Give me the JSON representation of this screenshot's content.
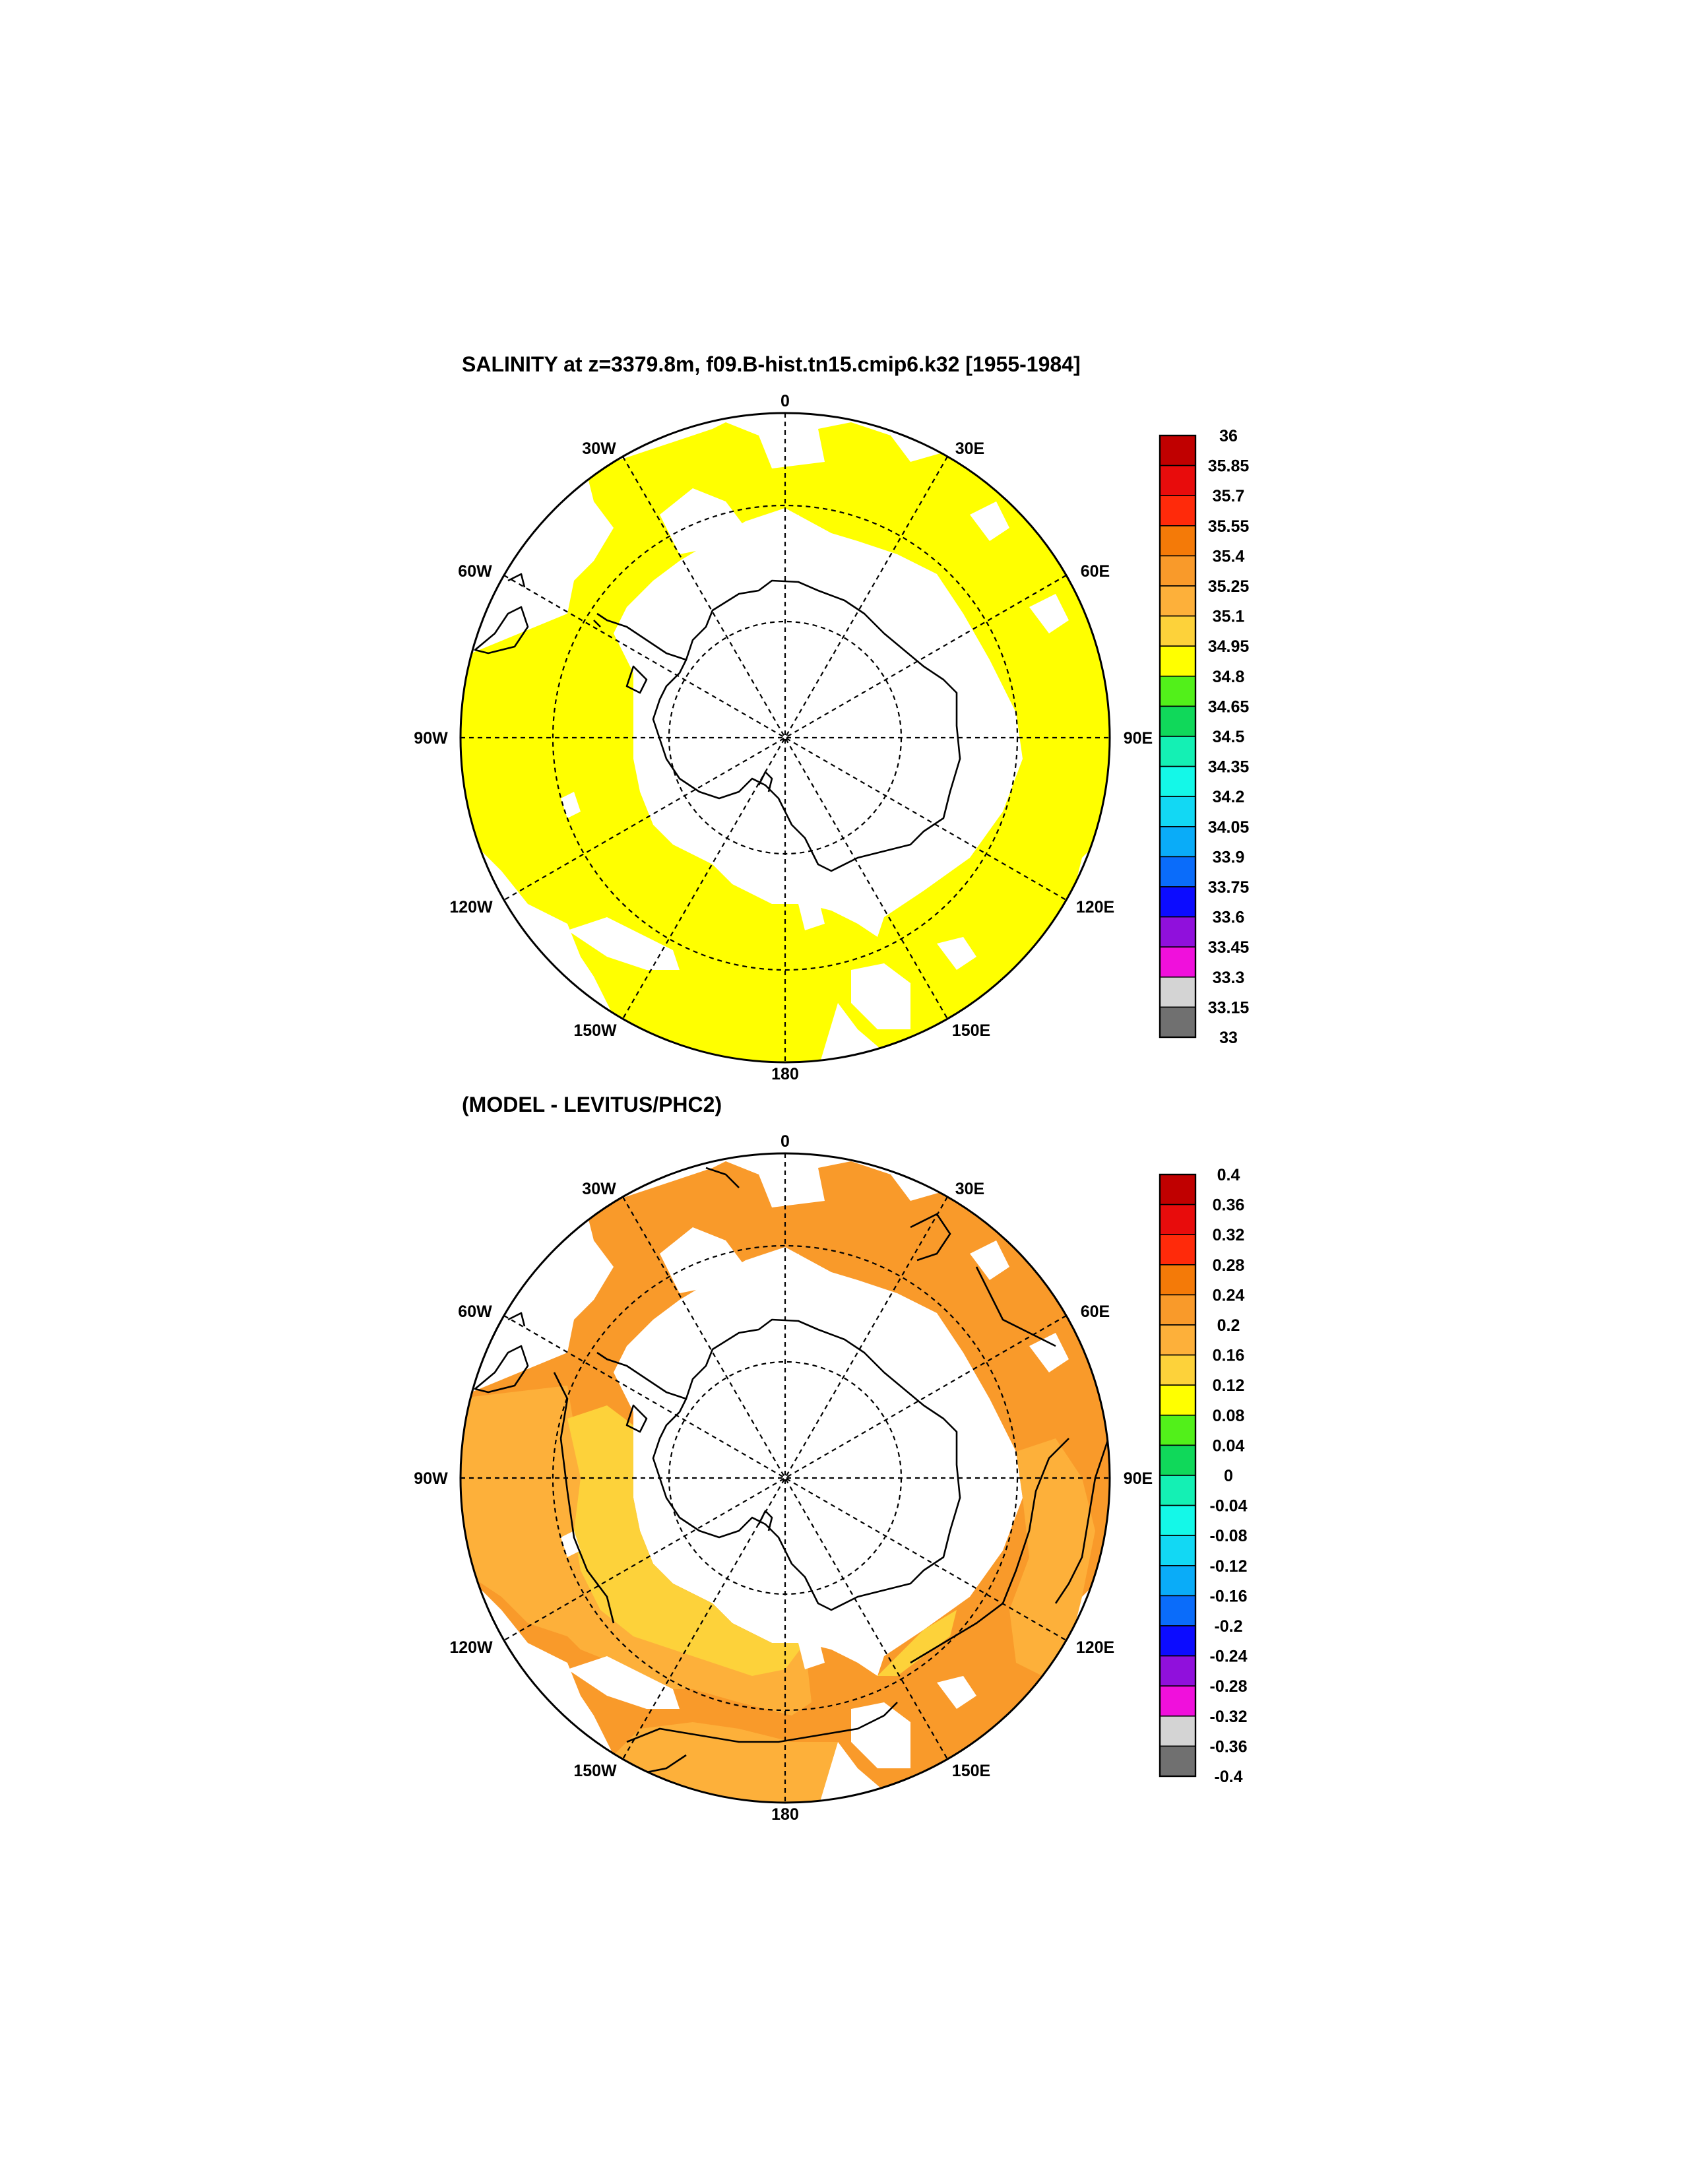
{
  "chart_data": [
    {
      "type": "map",
      "projection": "south-polar-stereographic",
      "title": "SALINITY at z=3379.8m, f09.B-hist.tn15.cmip6.k32 [1955-1984]",
      "longitude_labels": [
        "0",
        "30E",
        "60E",
        "90E",
        "120E",
        "150E",
        "180",
        "150W",
        "120W",
        "90W",
        "60W",
        "30W"
      ],
      "colorbar": {
        "levels": [
          "36",
          "35.85",
          "35.7",
          "35.55",
          "35.4",
          "35.25",
          "35.1",
          "34.95",
          "34.8",
          "34.65",
          "34.5",
          "34.35",
          "34.2",
          "34.05",
          "33.9",
          "33.75",
          "33.6",
          "33.45",
          "33.3",
          "33.15",
          "33"
        ],
        "colors": [
          "#c00000",
          "#e80c0c",
          "#ff2a0a",
          "#f47a08",
          "#f99a2a",
          "#fdb03a",
          "#fdd23a",
          "#ffff00",
          "#52f01a",
          "#10d85a",
          "#14f0b4",
          "#14f8e8",
          "#12d8f4",
          "#0aacf8",
          "#0a6cfa",
          "#0c0cff",
          "#9010dc",
          "#f010dc",
          "#d4d4d4",
          "#707070"
        ]
      },
      "field_value_range": [
        34.95,
        35.1
      ],
      "field_color": "#ffff00"
    },
    {
      "type": "map",
      "projection": "south-polar-stereographic",
      "title": "(MODEL - LEVITUS/PHC2)",
      "longitude_labels": [
        "0",
        "30E",
        "60E",
        "90E",
        "120E",
        "150E",
        "180",
        "150W",
        "120W",
        "90W",
        "60W",
        "30W"
      ],
      "colorbar": {
        "levels": [
          "0.4",
          "0.36",
          "0.32",
          "0.28",
          "0.24",
          "0.2",
          "0.16",
          "0.12",
          "0.08",
          "0.04",
          "0",
          "-0.04",
          "-0.08",
          "-0.12",
          "-0.16",
          "-0.2",
          "-0.24",
          "-0.28",
          "-0.32",
          "-0.36",
          "-0.4"
        ],
        "colors": [
          "#c00000",
          "#e80c0c",
          "#ff2a0a",
          "#f47a08",
          "#f99a2a",
          "#fdb03a",
          "#fdd23a",
          "#ffff00",
          "#52f01a",
          "#10d85a",
          "#14f0b4",
          "#14f8e8",
          "#12d8f4",
          "#0aacf8",
          "#0a6cfa",
          "#0c0cff",
          "#9010dc",
          "#f010dc",
          "#d4d4d4",
          "#707070"
        ]
      },
      "field_value_range": [
        0.12,
        0.28
      ],
      "field_colors": {
        "main": "#f99a2a",
        "secondary": "#fdb03a",
        "tertiary": "#fdd23a"
      }
    }
  ]
}
